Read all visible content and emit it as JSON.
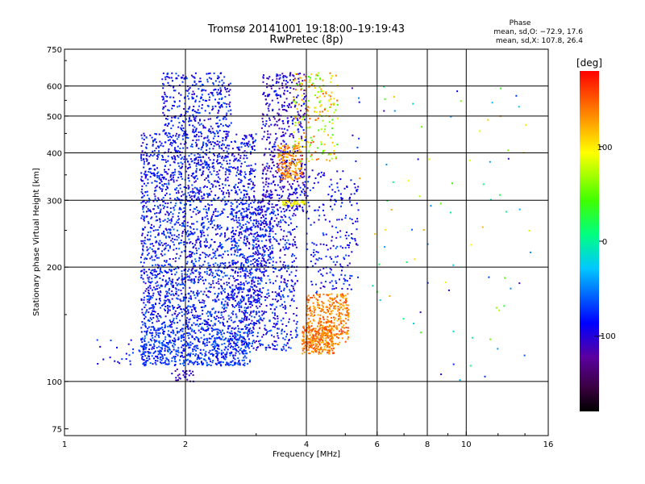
{
  "chart_data": {
    "type": "scatter",
    "title": "Tromsø 20141001 19:18:00–19:19:43",
    "subtitle": "RwPretec (8p)",
    "xlabel": "Frequency [MHz]",
    "ylabel": "Stationary phase Virtual Height [km]",
    "x_scale": "log",
    "y_scale": "log",
    "xlim": [
      1,
      16
    ],
    "ylim": [
      72,
      750
    ],
    "x_ticks": [
      "1",
      "2",
      "4",
      "6",
      "8",
      "10",
      "16"
    ],
    "x_tick_values": [
      1,
      2,
      4,
      6,
      8,
      10,
      16
    ],
    "y_ticks": [
      "750",
      "600",
      "500",
      "400",
      "300",
      "200",
      "100",
      "75"
    ],
    "y_tick_values": [
      750,
      600,
      500,
      400,
      300,
      200,
      100,
      75
    ],
    "x_gridlines": [
      2,
      4,
      6,
      8,
      10
    ],
    "y_gridlines": [
      600,
      500,
      400,
      300,
      200,
      100
    ],
    "phase_stats": {
      "heading": "Phase",
      "line_o": "mean, sd,O: −72.9, 17.6",
      "line_x": "mean, sd,X: 107.8, 26.4"
    },
    "colorbar": {
      "label": "[deg]",
      "range": [
        -180,
        180
      ],
      "ticks": [
        "100",
        "0",
        "−100"
      ],
      "tick_values": [
        100,
        0,
        -100
      ],
      "colormap": "rainbow (black → violet → blue → cyan → green → yellow → orange → red)"
    },
    "clusters": [
      {
        "f": [
          1.55,
          2.9
        ],
        "h": [
          110,
          140
        ],
        "n": 700,
        "phase": [
          -95,
          -55
        ]
      },
      {
        "f": [
          1.55,
          3.1
        ],
        "h": [
          140,
          200
        ],
        "n": 800,
        "phase": [
          -110,
          -55
        ]
      },
      {
        "f": [
          1.55,
          3.3
        ],
        "h": [
          200,
          300
        ],
        "n": 800,
        "phase": [
          -110,
          -55
        ]
      },
      {
        "f": [
          1.55,
          3.0
        ],
        "h": [
          300,
          450
        ],
        "n": 800,
        "phase": [
          -110,
          -60
        ]
      },
      {
        "f": [
          1.75,
          2.6
        ],
        "h": [
          450,
          650
        ],
        "n": 350,
        "phase": [
          -110,
          -60
        ]
      },
      {
        "f": [
          2.6,
          3.8
        ],
        "h": [
          120,
          300
        ],
        "n": 700,
        "phase": [
          -115,
          -55
        ]
      },
      {
        "f": [
          3.1,
          4.0
        ],
        "h": [
          280,
          650
        ],
        "n": 500,
        "phase": [
          -125,
          -75
        ]
      },
      {
        "f": [
          3.9,
          4.7
        ],
        "h": [
          118,
          140
        ],
        "n": 250,
        "phase": [
          120,
          160
        ]
      },
      {
        "f": [
          4.0,
          5.1
        ],
        "h": [
          125,
          170
        ],
        "n": 350,
        "phase": [
          115,
          160
        ]
      },
      {
        "f": [
          3.4,
          3.9
        ],
        "h": [
          340,
          420
        ],
        "n": 160,
        "phase": [
          110,
          160
        ]
      },
      {
        "f": [
          3.7,
          4.8
        ],
        "h": [
          380,
          650
        ],
        "n": 200,
        "phase": [
          40,
          160
        ]
      },
      {
        "f": [
          4.0,
          5.4
        ],
        "h": [
          170,
          360
        ],
        "n": 220,
        "phase": [
          -110,
          -60
        ]
      },
      {
        "f": [
          3.5,
          4.0
        ],
        "h": [
          290,
          300
        ],
        "n": 50,
        "phase": [
          80,
          110
        ]
      },
      {
        "f": [
          5.2,
          14.5
        ],
        "h": [
          100,
          600
        ],
        "n": 90,
        "phase": [
          -120,
          130
        ]
      },
      {
        "f": [
          1.2,
          1.6
        ],
        "h": [
          110,
          130
        ],
        "n": 25,
        "phase": [
          -100,
          -60
        ]
      },
      {
        "f": [
          1.85,
          2.1
        ],
        "h": [
          100,
          108
        ],
        "n": 30,
        "phase": [
          -120,
          -90
        ]
      }
    ],
    "grid": true,
    "legend": "colorbar at right"
  }
}
